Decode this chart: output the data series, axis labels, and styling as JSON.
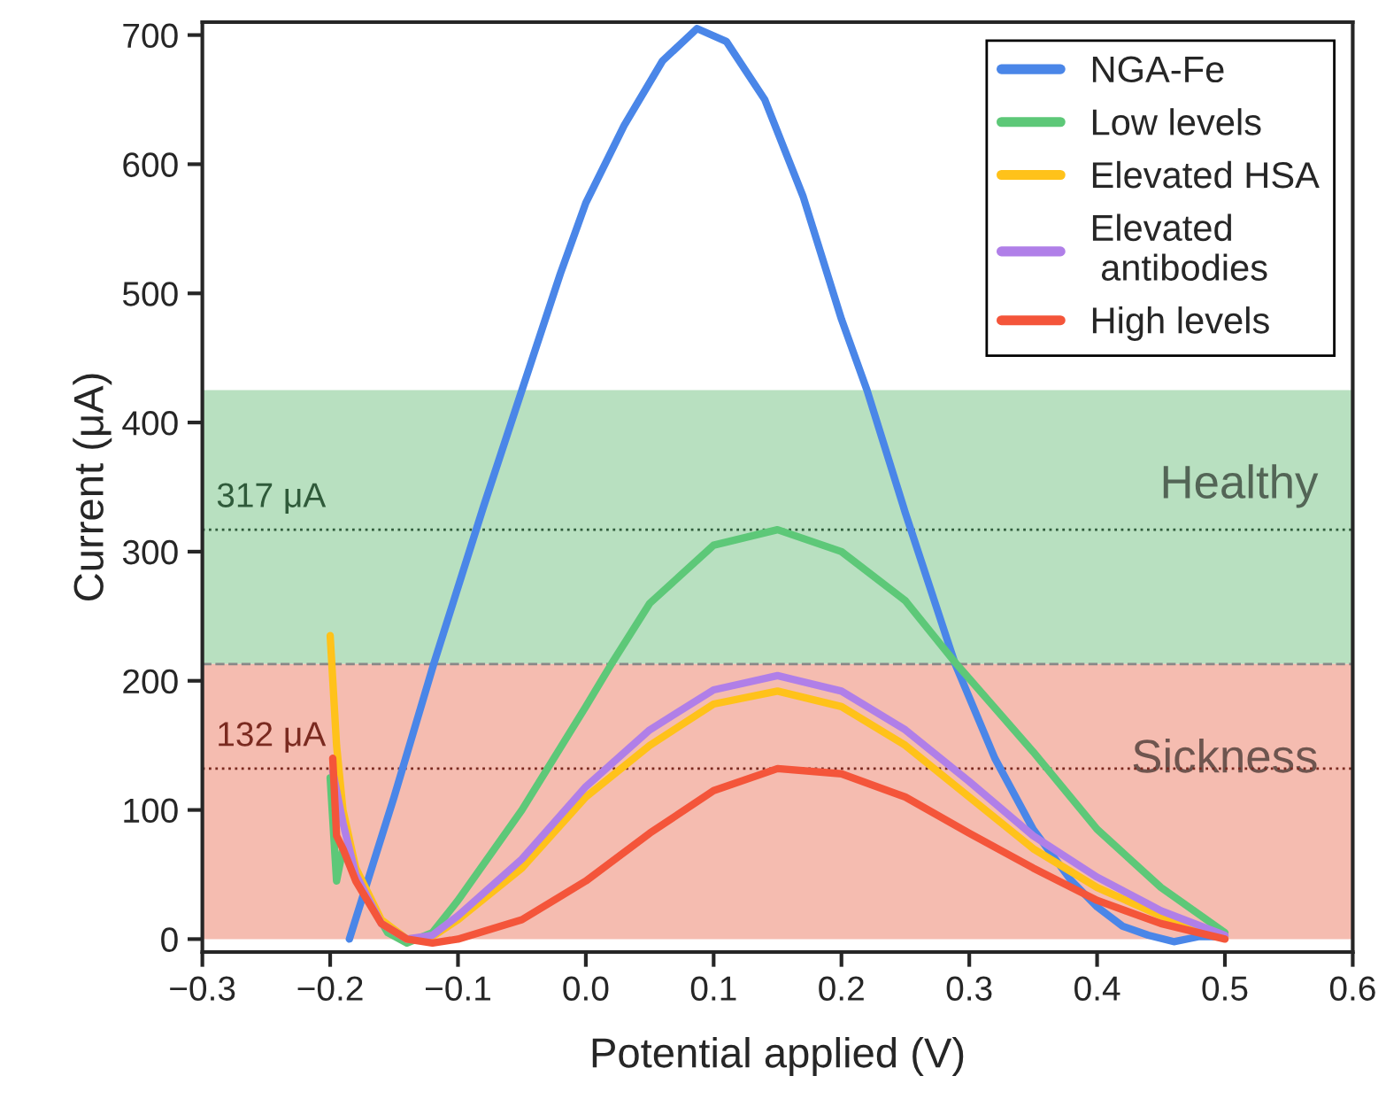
{
  "chart_data": {
    "type": "line",
    "xlabel": "Potential applied (V)",
    "ylabel": "Current (μA)",
    "xlim": [
      -0.3,
      0.6
    ],
    "ylim": [
      -10,
      710
    ],
    "xticks": [
      {
        "value": -0.3,
        "label": "−0.3"
      },
      {
        "value": -0.2,
        "label": "−0.2"
      },
      {
        "value": -0.1,
        "label": "−0.1"
      },
      {
        "value": 0.0,
        "label": "0.0"
      },
      0.1,
      0.2,
      0.3,
      0.4,
      0.5,
      0.6
    ],
    "yticks": [
      0,
      100,
      200,
      300,
      400,
      500,
      600,
      700
    ],
    "grid": false,
    "legend": "top right",
    "marker": "none",
    "line_style": "solid",
    "series": [
      {
        "name": "NGA-Fe",
        "color": "#4a86e8",
        "x": [
          -0.185,
          -0.15,
          -0.119,
          -0.08,
          -0.05,
          -0.02,
          0.0,
          0.03,
          0.06,
          0.087,
          0.11,
          0.14,
          0.17,
          0.2,
          0.22,
          0.25,
          0.289,
          0.32,
          0.35,
          0.38,
          0.4,
          0.42,
          0.44,
          0.46,
          0.48,
          0.5
        ],
        "values": [
          0,
          110,
          213,
          335,
          425,
          515,
          570,
          630,
          680,
          705,
          695,
          650,
          575,
          480,
          425,
          330,
          213,
          140,
          85,
          45,
          25,
          10,
          3,
          -2,
          2,
          2
        ]
      },
      {
        "name": "Low levels",
        "color": "#5dc878",
        "x": [
          -0.2,
          -0.195,
          -0.19,
          -0.17,
          -0.155,
          -0.14,
          -0.12,
          -0.1,
          -0.05,
          0.0,
          0.02,
          0.05,
          0.1,
          0.15,
          0.2,
          0.25,
          0.29,
          0.35,
          0.4,
          0.45,
          0.5
        ],
        "values": [
          125,
          45,
          70,
          30,
          5,
          -3,
          5,
          30,
          100,
          180,
          213,
          260,
          305,
          317,
          300,
          262,
          213,
          145,
          85,
          40,
          5
        ]
      },
      {
        "name": "Elevated HSA",
        "color": "#ffc21a",
        "x": [
          -0.2,
          -0.195,
          -0.19,
          -0.18,
          -0.16,
          -0.14,
          -0.12,
          -0.1,
          -0.05,
          0.0,
          0.05,
          0.1,
          0.15,
          0.2,
          0.25,
          0.3,
          0.35,
          0.4,
          0.45,
          0.5
        ],
        "values": [
          235,
          150,
          100,
          55,
          15,
          0,
          2,
          15,
          55,
          110,
          150,
          182,
          192,
          180,
          150,
          110,
          70,
          40,
          18,
          2
        ]
      },
      {
        "name": "Elevated\n antibodies",
        "color": "#b07fe8",
        "x": [
          -0.198,
          -0.19,
          -0.18,
          -0.16,
          -0.14,
          -0.12,
          -0.1,
          -0.05,
          0.0,
          0.05,
          0.1,
          0.15,
          0.2,
          0.25,
          0.3,
          0.35,
          0.4,
          0.45,
          0.5
        ],
        "values": [
          130,
          90,
          50,
          12,
          0,
          3,
          18,
          62,
          118,
          162,
          193,
          204,
          192,
          162,
          122,
          80,
          48,
          22,
          3
        ]
      },
      {
        "name": "High levels",
        "color": "#f4553a",
        "x": [
          -0.198,
          -0.195,
          -0.19,
          -0.18,
          -0.16,
          -0.14,
          -0.12,
          -0.1,
          -0.05,
          0.0,
          0.05,
          0.1,
          0.15,
          0.2,
          0.25,
          0.3,
          0.35,
          0.4,
          0.45,
          0.5
        ],
        "values": [
          140,
          80,
          70,
          45,
          12,
          0,
          -3,
          0,
          15,
          45,
          82,
          115,
          132,
          128,
          110,
          82,
          55,
          30,
          12,
          0
        ]
      }
    ],
    "bands": [
      {
        "axis": "y",
        "from": 213,
        "to": 425,
        "label": "Healthy",
        "color": "#b8e0c0"
      },
      {
        "axis": "y",
        "from": 0,
        "to": 213,
        "label": "Sickness",
        "color": "#f5bcb0"
      }
    ],
    "ref_lines": [
      {
        "axis": "y",
        "value": 213,
        "color": "#888888",
        "line_style": "dashed"
      },
      {
        "axis": "y",
        "value": 317,
        "label": "317 μA",
        "color": "#2f5a3a",
        "line_style": "dotted"
      },
      {
        "axis": "y",
        "value": 132,
        "label": "132 μA",
        "color": "#7a2a20",
        "line_style": "dotted"
      }
    ]
  }
}
